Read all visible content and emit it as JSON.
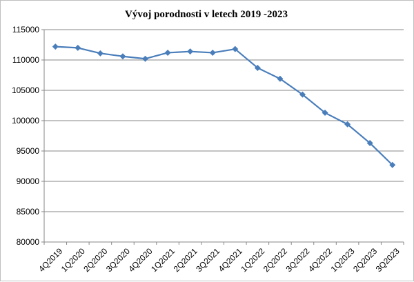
{
  "chart_data": {
    "type": "line",
    "title": "Vývoj porodnosti v letech 2019 -2023",
    "xlabel": "",
    "ylabel": "",
    "ylim": [
      80000,
      115000
    ],
    "yticks": [
      "80000",
      "85000",
      "90000",
      "95000",
      "100000",
      "105000",
      "110000",
      "115000"
    ],
    "grid": true,
    "legend": "none",
    "categories": [
      "4Q2019",
      "1Q2020",
      "2Q2020",
      "3Q2020",
      "4Q2020",
      "1Q2021",
      "2Q2021",
      "3Q2021",
      "4Q2021",
      "1Q2022",
      "2Q2022",
      "3Q2022",
      "4Q2022",
      "1Q2023",
      "2Q2023",
      "3Q2023"
    ],
    "series": [
      {
        "color": "#4a7ebb",
        "values": [
          112200,
          112000,
          111100,
          110600,
          110200,
          111200,
          111400,
          111200,
          111800,
          108700,
          106900,
          104300,
          101300,
          99400,
          96300,
          92700
        ]
      }
    ]
  }
}
